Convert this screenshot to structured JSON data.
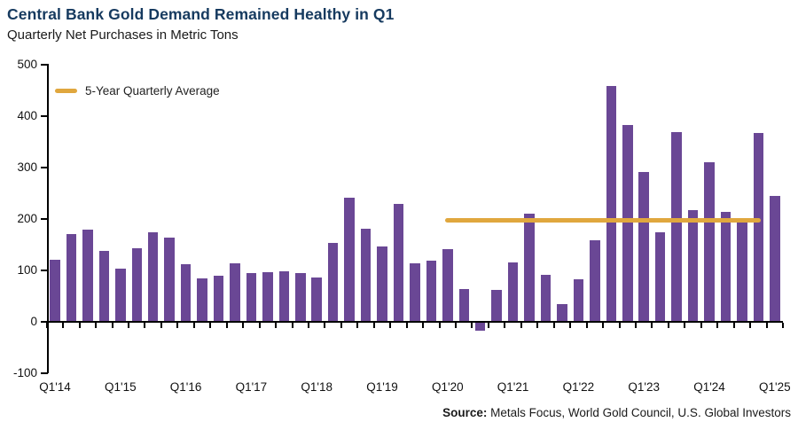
{
  "header": {
    "title": "Central Bank Gold Demand Remained Healthy in Q1",
    "subtitle": "Quarterly Net Purchases in Metric Tons"
  },
  "legend": {
    "label": "5-Year Quarterly Average"
  },
  "source": {
    "prefix": "Source:",
    "text": " Metals Focus, World Gold Council, U.S. Global Investors"
  },
  "colors": {
    "title": "#163A5F",
    "bar": "#6A4795",
    "average_line": "#E0A73E",
    "axis": "#000000"
  },
  "chart_data": {
    "type": "bar",
    "title": "Central Bank Gold Demand Remained Healthy in Q1",
    "subtitle": "Quarterly Net Purchases in Metric Tons",
    "categories": [
      "Q1'14",
      "Q2'14",
      "Q3'14",
      "Q4'14",
      "Q1'15",
      "Q2'15",
      "Q3'15",
      "Q4'15",
      "Q1'16",
      "Q2'16",
      "Q3'16",
      "Q4'16",
      "Q1'17",
      "Q2'17",
      "Q3'17",
      "Q4'17",
      "Q1'18",
      "Q2'18",
      "Q3'18",
      "Q4'18",
      "Q1'19",
      "Q2'19",
      "Q3'19",
      "Q4'19",
      "Q1'20",
      "Q2'20",
      "Q3'20",
      "Q4'20",
      "Q1'21",
      "Q2'21",
      "Q3'21",
      "Q4'21",
      "Q1'22",
      "Q2'22",
      "Q3'22",
      "Q4'22",
      "Q1'23",
      "Q2'23",
      "Q3'23",
      "Q4'23",
      "Q1'24",
      "Q2'24",
      "Q3'24",
      "Q4'24",
      "Q1'25"
    ],
    "values": [
      120,
      171,
      179,
      138,
      104,
      143,
      174,
      164,
      112,
      84,
      89,
      113,
      94,
      97,
      98,
      95,
      86,
      154,
      242,
      181,
      147,
      230,
      114,
      119,
      142,
      64,
      -15,
      62,
      116,
      211,
      92,
      35,
      83,
      159,
      458,
      382,
      291,
      175,
      369,
      218,
      311,
      213,
      202,
      367,
      244
    ],
    "x_tick_labels": [
      "Q1'14",
      "Q1'15",
      "Q1'16",
      "Q1'17",
      "Q1'18",
      "Q1'19",
      "Q1'20",
      "Q1'21",
      "Q1'22",
      "Q1'23",
      "Q1'24",
      "Q1'25"
    ],
    "ylim": [
      -100,
      500
    ],
    "y_ticks": [
      500,
      400,
      300,
      200,
      100,
      0,
      -100
    ],
    "grid": false,
    "legend_position": "top-left",
    "bar_color": "#6A4795",
    "average_line": {
      "label": "5-Year Quarterly Average",
      "value": 197,
      "from_category": "Q1'20",
      "to_category": "Q4'24",
      "color": "#E0A73E"
    }
  }
}
